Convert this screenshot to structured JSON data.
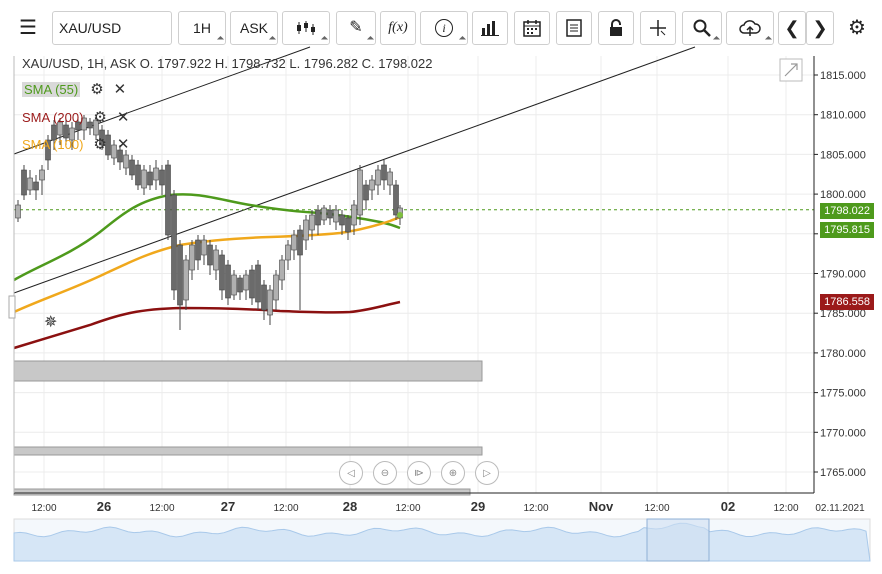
{
  "toolbar": {
    "symbol": "XAU/USD",
    "timeframe": "1H",
    "price_type": "ASK",
    "fx_label": "f(x)"
  },
  "ohlc": {
    "text": "XAU/USD, 1H, ASK    O. 1797.922 H. 1798.732 L. 1796.282 C. 1798.022"
  },
  "indicators": [
    {
      "label": "SMA (55)",
      "color": "#4e9a1c"
    },
    {
      "label": "SMA (200)",
      "color": "#9b1a1a"
    },
    {
      "label": "SMA (100)",
      "color": "#f0a81c"
    }
  ],
  "price_labels": {
    "current": {
      "text": "1798.022",
      "color": "#4e9a1c"
    },
    "sma55": {
      "text": "1795.815",
      "color": "#4e9a1c"
    },
    "sma200": {
      "text": "1786.558",
      "color": "#9b1a1a"
    }
  },
  "chart_data": {
    "type": "candlestick",
    "y_ticks": [
      "1815.000",
      "1810.000",
      "1805.000",
      "1800.000",
      "1795.000",
      "1790.000",
      "1785.000",
      "1780.000",
      "1775.000",
      "1770.000",
      "1765.000"
    ],
    "y_tick_values": [
      1815,
      1810,
      1805,
      1800,
      1795,
      1790,
      1785,
      1780,
      1775,
      1770,
      1765
    ],
    "x_ticks": [
      "12:00",
      "26",
      "12:00",
      "27",
      "12:00",
      "28",
      "12:00",
      "29",
      "12:00",
      "Nov",
      "12:00",
      "02",
      "12:00",
      "02.11.2021"
    ],
    "ylim": [
      1762,
      1818
    ],
    "current_price": 1798.022,
    "sma55_last": 1795.815,
    "sma200_last": 1786.558
  }
}
